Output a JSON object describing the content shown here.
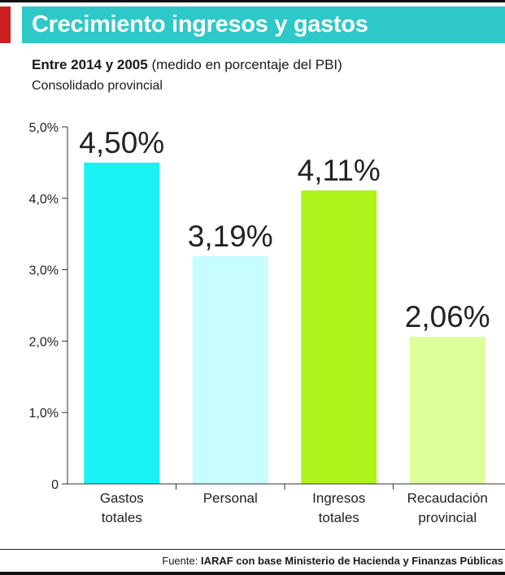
{
  "header": {
    "title": "Crecimiento ingresos y gastos",
    "subtitle_bold": "Entre 2014 y 2005",
    "subtitle_rest": " (medido en porcentaje del PBI)",
    "subtitle2": "Consolidado provincial",
    "title_bar_color": "#2ec8c8",
    "accent_color": "#cc1f1f"
  },
  "chart_data": {
    "type": "bar",
    "categories": [
      [
        "Gastos",
        "totales"
      ],
      [
        "Personal"
      ],
      [
        "Ingresos",
        "totales"
      ],
      [
        "Recaudación",
        "provincial"
      ]
    ],
    "values": [
      4.5,
      3.19,
      4.11,
      2.06
    ],
    "data_labels": [
      "4,50%",
      "3,19%",
      "4,11%",
      "2,06%"
    ],
    "colors": [
      "#19f3f5",
      "#c8fdff",
      "#b0f21c",
      "#dcff99"
    ],
    "ylim": [
      0,
      5
    ],
    "yticks": [
      0,
      1,
      2,
      3,
      4,
      5
    ],
    "ytick_labels": [
      "0",
      "1,0%",
      "2,0%",
      "3,0%",
      "4,0%",
      "5,0%"
    ],
    "grid": false,
    "title": "",
    "xlabel": "",
    "ylabel": ""
  },
  "footer": {
    "source_label": "Fuente: ",
    "source_text": "IARAF con base Ministerio de Hacienda y Finanzas Públicas"
  }
}
